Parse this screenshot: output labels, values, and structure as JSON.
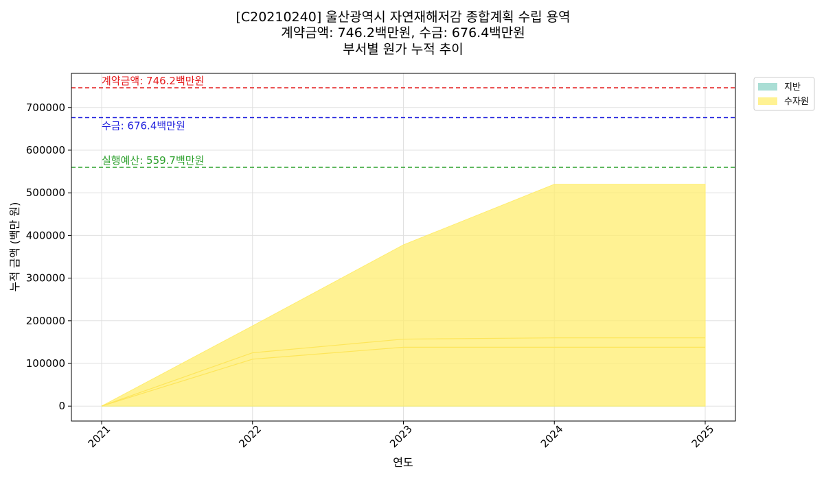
{
  "chart_data": {
    "type": "area",
    "title_lines": [
      "[C20210240] 울산광역시 자연재해저감 종합계획 수립 용역",
      "계약금액: 746.2백만원, 수금: 676.4백만원",
      "부서별 원가 누적 추이"
    ],
    "xlabel": "연도",
    "ylabel": "누적 금액 (백만 원)",
    "x": [
      2021,
      2022,
      2023,
      2024,
      2025
    ],
    "x_tick_labels": [
      "2021",
      "2022",
      "2023",
      "2024",
      "2025"
    ],
    "ylim": [
      -35000,
      780000
    ],
    "y_ticks": [
      0,
      100000,
      200000,
      300000,
      400000,
      500000,
      600000,
      700000
    ],
    "y_tick_labels": [
      "0",
      "100000",
      "200000",
      "300000",
      "400000",
      "500000",
      "600000",
      "700000"
    ],
    "grid": true,
    "legend_position": "upper-right-outside",
    "series": [
      {
        "name": "지반",
        "color": "#8dd3c7",
        "values": [
          0,
          0,
          0,
          0,
          0
        ]
      },
      {
        "name": "수자원",
        "color": "#ffed6f",
        "values": [
          0,
          188000,
          378000,
          520000,
          520000
        ]
      }
    ],
    "inner_lines": [
      {
        "values": [
          0,
          110000,
          138000,
          138000,
          138000
        ]
      },
      {
        "values": [
          0,
          125000,
          157000,
          160000,
          160000
        ]
      }
    ],
    "reference_lines": [
      {
        "label": "계약금액: 746.2백만원",
        "value": 746200,
        "color": "#e41a1c",
        "label_side": "above"
      },
      {
        "label": "수금: 676.4백만원",
        "value": 676400,
        "color": "#1f1fdd",
        "label_side": "below"
      },
      {
        "label": "실행예산: 559.7백만원",
        "value": 559700,
        "color": "#2ca02c",
        "label_side": "above"
      }
    ]
  }
}
